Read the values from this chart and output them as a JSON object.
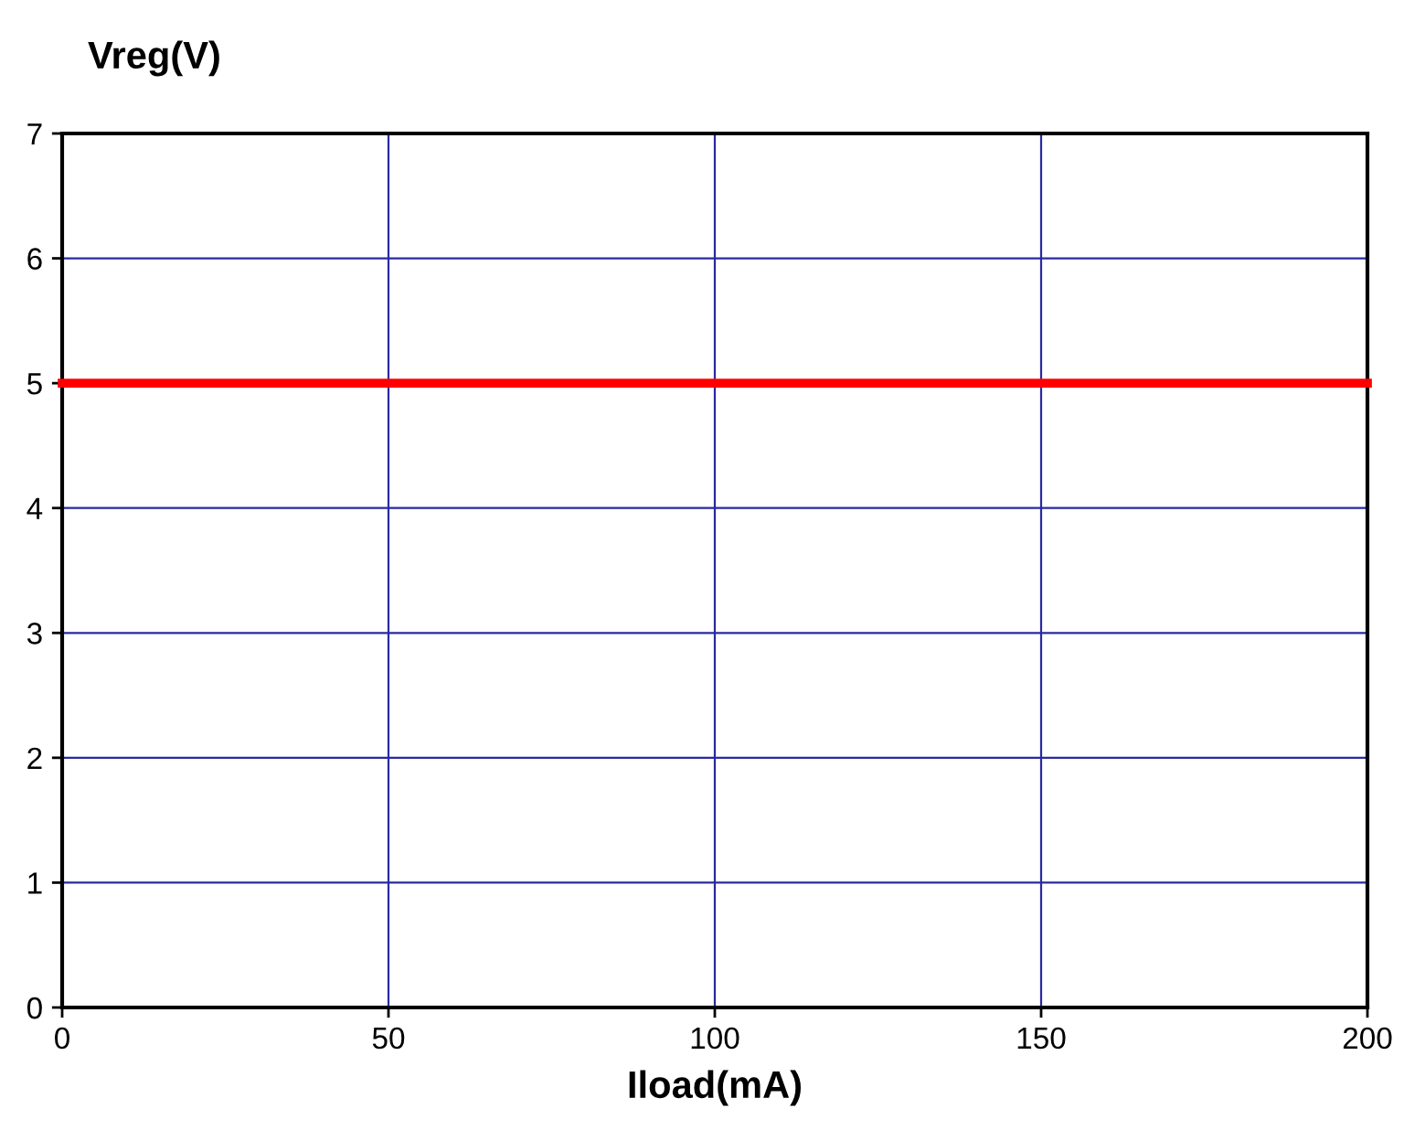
{
  "chart_data": {
    "type": "line",
    "xlabel": "Iload(mA)",
    "ylabel": "Vreg(V)",
    "x": [
      0,
      200
    ],
    "series": [
      {
        "color": "#ff0000",
        "values": [
          5,
          5
        ]
      }
    ],
    "xlim": [
      0,
      200
    ],
    "xticks": [
      0,
      50,
      100,
      150,
      200
    ],
    "ylim": [
      0,
      7
    ],
    "yticks": [
      0,
      1,
      2,
      3,
      4,
      5,
      6,
      7
    ],
    "grid": true,
    "marker": "none",
    "line_style": "solid"
  }
}
